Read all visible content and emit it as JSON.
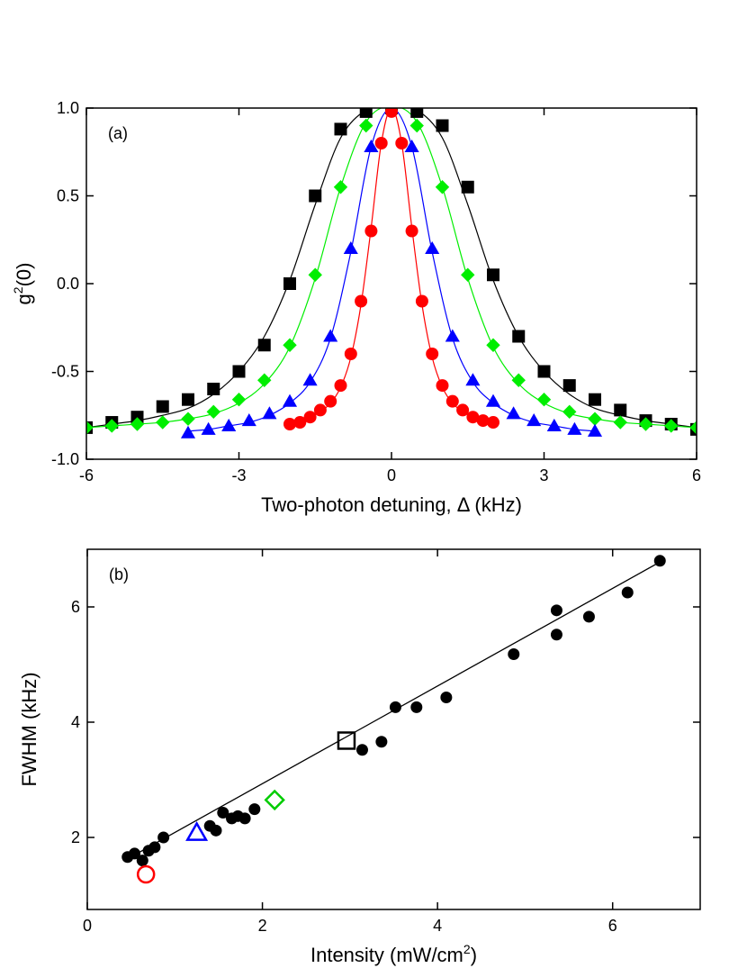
{
  "chart_data": [
    {
      "type": "scatter",
      "label": "(a)",
      "x_label": "Two-photon detuning, Δ (kHz)",
      "y_label": [
        "g",
        "2",
        "(0)"
      ],
      "xlim": [
        -6,
        6
      ],
      "xticks": [
        -6,
        -3,
        0,
        3,
        6
      ],
      "ylim": [
        -1,
        1
      ],
      "yticks": [
        {
          "value": -1,
          "label": "-1.0"
        },
        -0.5,
        {
          "value": 0,
          "label": "0.0"
        },
        0.5,
        {
          "value": 1,
          "label": "1.0"
        }
      ],
      "series": [
        {
          "color": "#000000",
          "marker": "square",
          "filled": true,
          "x": [
            -6,
            -5.5,
            -5,
            -4.5,
            -4,
            -3.5,
            -3,
            -2.5,
            -2,
            -1.5,
            -1,
            -0.5,
            0,
            0.5,
            1,
            1.5,
            2,
            2.5,
            3,
            3.5,
            4,
            4.5,
            5,
            5.5,
            6
          ],
          "y": [
            -0.82,
            -0.79,
            -0.76,
            -0.7,
            -0.66,
            -0.6,
            -0.5,
            -0.35,
            0.0,
            0.5,
            0.88,
            0.98,
            1.0,
            0.98,
            0.9,
            0.55,
            0.05,
            -0.3,
            -0.5,
            -0.58,
            -0.66,
            -0.72,
            -0.78,
            -0.8,
            -0.83
          ],
          "fit": [
            -0.82,
            -0.8,
            -0.78,
            -0.75,
            -0.71,
            -0.63,
            -0.5,
            -0.3,
            0.02,
            0.45,
            0.83,
            0.99,
            1.03,
            0.99,
            0.83,
            0.45,
            0.02,
            -0.3,
            -0.5,
            -0.63,
            -0.71,
            -0.75,
            -0.78,
            -0.8,
            -0.82
          ]
        },
        {
          "color": "#00ee00",
          "marker": "diamond",
          "filled": true,
          "x": [
            -6,
            -5.5,
            -5,
            -4.5,
            -4,
            -3.5,
            -3,
            -2.5,
            -2,
            -1.5,
            -1,
            -0.5,
            0,
            0.5,
            1,
            1.5,
            2,
            2.5,
            3,
            3.5,
            4,
            4.5,
            5,
            5.5,
            6
          ],
          "y": [
            -0.82,
            -0.81,
            -0.8,
            -0.79,
            -0.77,
            -0.73,
            -0.66,
            -0.55,
            -0.35,
            0.05,
            0.55,
            0.9,
            1.0,
            0.9,
            0.55,
            0.05,
            -0.35,
            -0.55,
            -0.66,
            -0.73,
            -0.77,
            -0.79,
            -0.8,
            -0.81,
            -0.82
          ],
          "fit": [
            -0.82,
            -0.81,
            -0.8,
            -0.79,
            -0.77,
            -0.74,
            -0.68,
            -0.57,
            -0.36,
            0.03,
            0.55,
            0.92,
            1.01,
            0.92,
            0.55,
            0.03,
            -0.36,
            -0.57,
            -0.68,
            -0.74,
            -0.77,
            -0.79,
            -0.8,
            -0.81,
            -0.82
          ]
        },
        {
          "color": "#0000ff",
          "marker": "triangle",
          "filled": true,
          "x": [
            -4,
            -3.6,
            -3.2,
            -2.8,
            -2.4,
            -2,
            -1.6,
            -1.2,
            -0.8,
            -0.4,
            0,
            0.4,
            0.8,
            1.2,
            1.6,
            2,
            2.4,
            2.8,
            3.2,
            3.6,
            4
          ],
          "y": [
            -0.85,
            -0.83,
            -0.81,
            -0.78,
            -0.74,
            -0.67,
            -0.55,
            -0.3,
            0.2,
            0.78,
            1.0,
            0.78,
            0.2,
            -0.3,
            -0.55,
            -0.67,
            -0.74,
            -0.78,
            -0.81,
            -0.83,
            -0.84
          ],
          "fit": [
            -0.84,
            -0.83,
            -0.81,
            -0.79,
            -0.75,
            -0.68,
            -0.56,
            -0.31,
            0.18,
            0.78,
            1.0,
            0.78,
            0.18,
            -0.31,
            -0.56,
            -0.68,
            -0.75,
            -0.79,
            -0.81,
            -0.83,
            -0.84
          ]
        },
        {
          "color": "#ff0000",
          "marker": "circle",
          "filled": true,
          "x": [
            -2,
            -1.8,
            -1.6,
            -1.4,
            -1.2,
            -1,
            -0.8,
            -0.6,
            -0.4,
            -0.2,
            0,
            0.2,
            0.4,
            0.6,
            0.8,
            1,
            1.2,
            1.4,
            1.6,
            1.8,
            2
          ],
          "y": [
            -0.8,
            -0.79,
            -0.76,
            -0.72,
            -0.67,
            -0.58,
            -0.4,
            -0.1,
            0.3,
            0.8,
            0.98,
            0.8,
            0.3,
            -0.1,
            -0.4,
            -0.58,
            -0.67,
            -0.72,
            -0.76,
            -0.78,
            -0.79
          ],
          "fit": [
            -0.8,
            -0.78,
            -0.76,
            -0.73,
            -0.68,
            -0.59,
            -0.42,
            -0.12,
            0.32,
            0.8,
            1.0,
            0.8,
            0.32,
            -0.12,
            -0.42,
            -0.59,
            -0.68,
            -0.73,
            -0.76,
            -0.78,
            -0.8
          ]
        }
      ]
    },
    {
      "type": "scatter",
      "label": "(b)",
      "x_label": [
        "Intensity (mW/cm",
        "2",
        ")"
      ],
      "y_label": "FWHM (kHz)",
      "xlim": [
        0,
        7
      ],
      "xticks": [
        0,
        2,
        4,
        6
      ],
      "ylim": [
        0.75,
        7
      ],
      "yticks": [
        2,
        4,
        6
      ],
      "series": [
        {
          "color": "#000000",
          "marker": "circle",
          "filled": true,
          "x": [
            0.46,
            0.54,
            0.63,
            0.7,
            0.77,
            0.87,
            1.4,
            1.47,
            1.55,
            1.65,
            1.72,
            1.8,
            1.91,
            3.14,
            3.36,
            3.52,
            3.76,
            4.1,
            4.87,
            5.36,
            5.36,
            5.73,
            6.17,
            6.54
          ],
          "y": [
            1.66,
            1.72,
            1.6,
            1.77,
            1.83,
            2.0,
            2.2,
            2.12,
            2.43,
            2.33,
            2.37,
            2.33,
            2.49,
            3.52,
            3.66,
            4.26,
            4.26,
            4.43,
            5.18,
            5.94,
            5.52,
            5.83,
            6.25,
            6.8
          ]
        },
        {
          "color": "#ff0000",
          "marker": "circle",
          "filled": false,
          "x": [
            0.67
          ],
          "y": [
            1.36
          ]
        },
        {
          "color": "#0000ff",
          "marker": "triangle",
          "filled": false,
          "x": [
            1.25
          ],
          "y": [
            2.08
          ]
        },
        {
          "color": "#00cc00",
          "marker": "diamond",
          "filled": false,
          "x": [
            2.14
          ],
          "y": [
            2.65
          ]
        },
        {
          "color": "#000000",
          "marker": "square",
          "filled": false,
          "x": [
            2.96
          ],
          "y": [
            3.68
          ]
        }
      ],
      "fit_line": {
        "color": "#000000",
        "x": [
          0.45,
          6.6
        ],
        "y": [
          1.62,
          6.83
        ]
      }
    }
  ]
}
